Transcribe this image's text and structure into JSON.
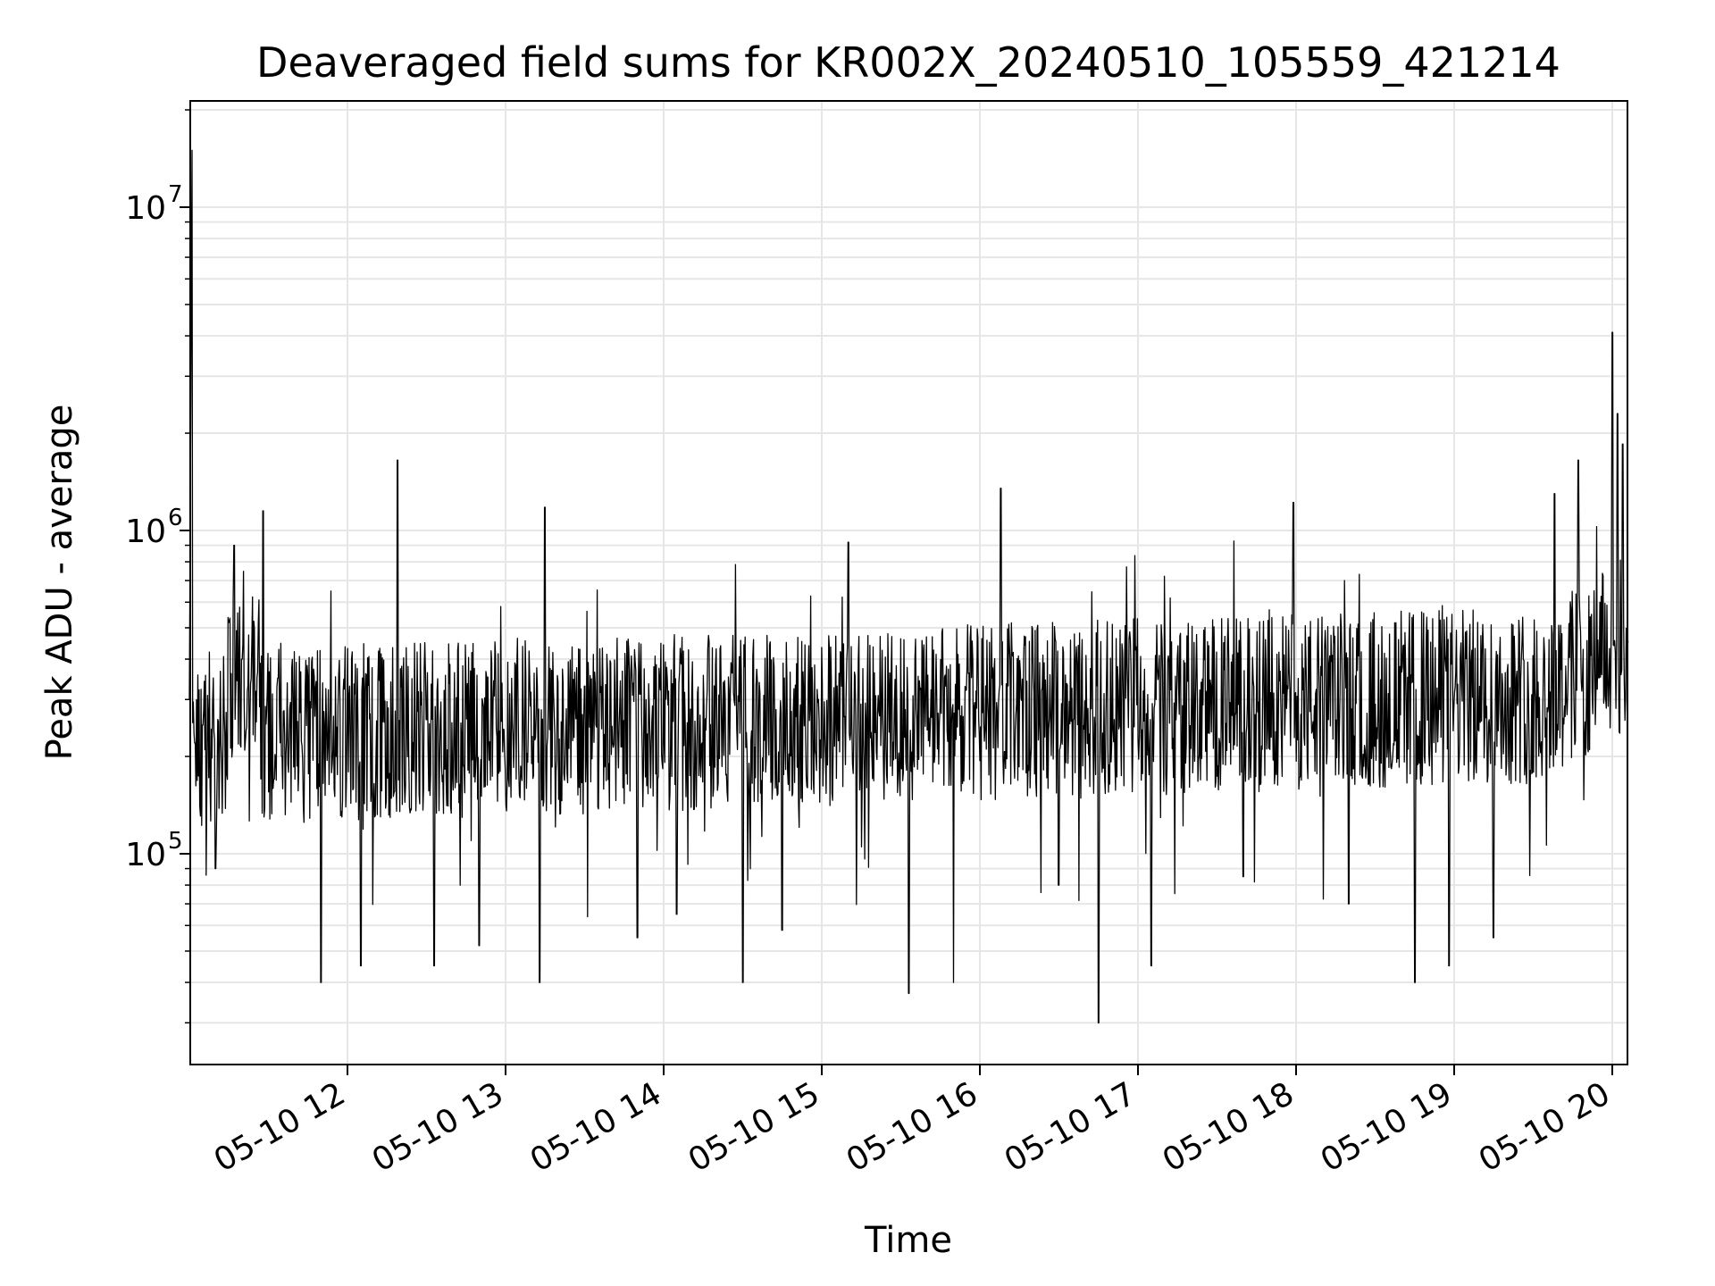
{
  "chart_data": {
    "type": "line",
    "title": "Deaveraged field sums for KR002X_20240510_105559_421214",
    "xlabel": "Time",
    "ylabel": "Peak ADU - average",
    "y_scale": "log",
    "ylim": [
      22000,
      21000000
    ],
    "xlim": [
      "2024-05-10 11:00",
      "2024-05-10 20:06"
    ],
    "grid": true,
    "line_color": "#000000",
    "x_ticks": [
      "05-10 12",
      "05-10 13",
      "05-10 14",
      "05-10 15",
      "05-10 16",
      "05-10 17",
      "05-10 18",
      "05-10 19",
      "05-10 20"
    ],
    "y_ticks": [
      {
        "base": "10",
        "exp": "5",
        "value": 100000
      },
      {
        "base": "10",
        "exp": "6",
        "value": 1000000
      },
      {
        "base": "10",
        "exp": "7",
        "value": 10000000
      }
    ],
    "series": [
      {
        "points": [
          [
            "2024-05-10 11:00",
            300000
          ],
          [
            "2024-05-10 11:01",
            15000000
          ],
          [
            "2024-05-10 11:02",
            220000
          ],
          [
            "2024-05-10 11:05",
            250000
          ],
          [
            "2024-05-10 11:10",
            90000
          ],
          [
            "2024-05-10 11:15",
            520000
          ],
          [
            "2024-05-10 11:17",
            900000
          ],
          [
            "2024-05-10 11:20",
            400000
          ],
          [
            "2024-05-10 11:28",
            1150000
          ],
          [
            "2024-05-10 11:35",
            200000
          ],
          [
            "2024-05-10 11:50",
            40000
          ],
          [
            "2024-05-10 12:05",
            45000
          ],
          [
            "2024-05-10 12:19",
            1650000
          ],
          [
            "2024-05-10 12:30",
            260000
          ],
          [
            "2024-05-10 12:33",
            45000
          ],
          [
            "2024-05-10 12:50",
            52000
          ],
          [
            "2024-05-10 13:13",
            40000
          ],
          [
            "2024-05-10 13:15",
            1180000
          ],
          [
            "2024-05-10 13:30",
            330000
          ],
          [
            "2024-05-10 13:50",
            55000
          ],
          [
            "2024-05-10 14:05",
            65000
          ],
          [
            "2024-05-10 14:30",
            40000
          ],
          [
            "2024-05-10 14:45",
            58000
          ],
          [
            "2024-05-10 15:10",
            920000
          ],
          [
            "2024-05-10 15:33",
            37000
          ],
          [
            "2024-05-10 15:50",
            40000
          ],
          [
            "2024-05-10 16:08",
            1350000
          ],
          [
            "2024-05-10 16:30",
            80000
          ],
          [
            "2024-05-10 16:45",
            30000
          ],
          [
            "2024-05-10 17:05",
            45000
          ],
          [
            "2024-05-10 17:40",
            85000
          ],
          [
            "2024-05-10 17:59",
            1220000
          ],
          [
            "2024-05-10 18:20",
            70000
          ],
          [
            "2024-05-10 18:45",
            40000
          ],
          [
            "2024-05-10 18:58",
            45000
          ],
          [
            "2024-05-10 19:15",
            55000
          ],
          [
            "2024-05-10 19:38",
            1300000
          ],
          [
            "2024-05-10 19:47",
            1650000
          ],
          [
            "2024-05-10 19:55",
            350000
          ],
          [
            "2024-05-10 20:00",
            4100000
          ],
          [
            "2024-05-10 20:02",
            2300000
          ],
          [
            "2024-05-10 20:04",
            1850000
          ],
          [
            "2024-05-10 20:06",
            450000
          ]
        ]
      }
    ]
  }
}
